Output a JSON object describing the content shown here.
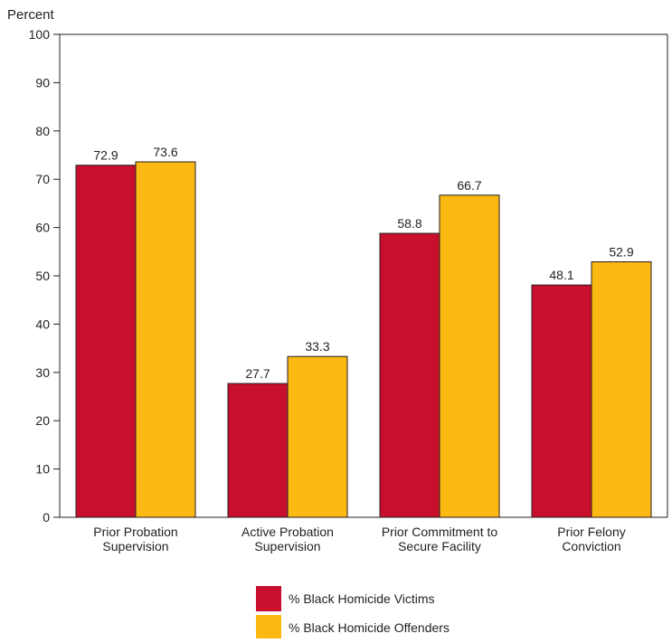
{
  "chart_data": {
    "type": "bar",
    "title": "",
    "xlabel": "",
    "ylabel": "Percent",
    "ylim": [
      0,
      100
    ],
    "yticks": [
      0,
      10,
      20,
      30,
      40,
      50,
      60,
      70,
      80,
      90,
      100
    ],
    "grid": false,
    "legend_position": "bottom-center",
    "categories": [
      [
        "Prior Probation",
        "Supervision"
      ],
      [
        "Active Probation",
        "Supervision"
      ],
      [
        "Prior Commitment to",
        "Secure Facility"
      ],
      [
        "Prior Felony",
        "Conviction"
      ]
    ],
    "series": [
      {
        "name": "% Black Homicide Victims",
        "color": "#c8102e",
        "values": [
          72.9,
          27.7,
          58.8,
          48.1
        ]
      },
      {
        "name": "% Black Homicide Offenders",
        "color": "#fdb913",
        "values": [
          73.6,
          33.3,
          66.7,
          52.9
        ]
      }
    ]
  }
}
